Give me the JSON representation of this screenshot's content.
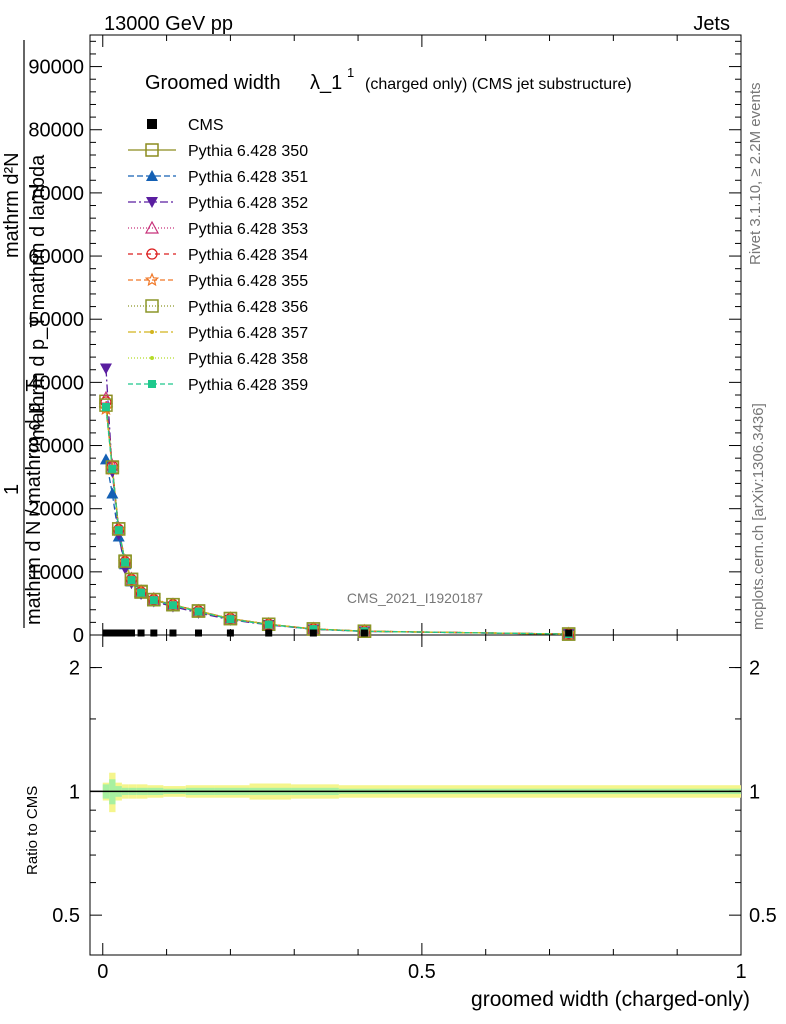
{
  "header": {
    "left": "13000 GeV pp",
    "right": "Jets"
  },
  "side": {
    "rivet": "Rivet 3.1.10, ≥ 2.2M events",
    "mcplots": "mcplots.cern.ch [arXiv:1306.3436]"
  },
  "watermark": "CMS_2021_I1920187",
  "chart_data": {
    "type": "line",
    "title": "Groomed width λ_1^1",
    "title_parts": {
      "main": "Groomed width",
      "symbol": "λ_1",
      "superscript": "1",
      "suffix": "(charged only) (CMS jet substructure)"
    },
    "xlabel": "groomed width (charged-only)",
    "ylabel_main": "1 / mathrm d N / mathrm d p_T  mathrm d^2 N / mathrm d p_T mathrm d lambda",
    "ylabel_parts": {
      "top": "mathrm d²N",
      "mid": "mathrm d p_T mathrm d lambda",
      "one": "1",
      "bottom": "mathrm d N / mathrm d p_T"
    },
    "ratio_ylabel": "Ratio to CMS",
    "xlim": [
      -0.02,
      1.0
    ],
    "ylim": [
      0,
      95000
    ],
    "ratio_ylim": [
      0.4,
      2.4
    ],
    "x_ticks": [
      "0",
      "0.5",
      "1"
    ],
    "x_tick_values": [
      0,
      0.5,
      1
    ],
    "y_ticks": [
      "0",
      "10000",
      "20000",
      "30000",
      "40000",
      "50000",
      "60000",
      "70000",
      "80000",
      "90000"
    ],
    "y_tick_values": [
      0,
      10000,
      20000,
      30000,
      40000,
      50000,
      60000,
      70000,
      80000,
      90000
    ],
    "ratio_ticks": [
      "0.5",
      "1",
      "2"
    ],
    "ratio_tick_values": [
      0.5,
      1,
      2
    ],
    "ratio_log_scale": true,
    "x": [
      0.005,
      0.015,
      0.025,
      0.035,
      0.045,
      0.06,
      0.08,
      0.11,
      0.15,
      0.2,
      0.26,
      0.33,
      0.41,
      0.73
    ],
    "data_values": [
      0,
      0,
      0,
      0,
      0,
      0,
      0,
      0,
      0,
      0,
      0,
      0,
      0,
      0
    ],
    "ratio_band_inner": [
      0.04,
      0.07,
      0.03,
      0.02,
      0.02,
      0.02,
      0.02,
      0.015,
      0.02,
      0.02,
      0.02,
      0.02,
      0.015,
      0.015
    ],
    "ratio_band_outer": [
      0.05,
      0.11,
      0.05,
      0.04,
      0.04,
      0.04,
      0.035,
      0.03,
      0.035,
      0.035,
      0.045,
      0.04,
      0.035,
      0.035
    ],
    "series": [
      {
        "name": "CMS",
        "color": "#000000",
        "marker": "square-filled",
        "dash": "none",
        "values": [
          0,
          0,
          0,
          0,
          0,
          0,
          0,
          0,
          0,
          0,
          0,
          0,
          0,
          0
        ]
      },
      {
        "name": "Pythia 6.428 350",
        "color": "#8c8c1f",
        "marker": "square-open",
        "dash": "none",
        "values": [
          37000,
          26500,
          16800,
          11600,
          8800,
          6800,
          5600,
          4800,
          3800,
          2600,
          1700,
          950,
          600,
          150
        ]
      },
      {
        "name": "Pythia 6.428 351",
        "color": "#1460b4",
        "marker": "triangle-up-filled",
        "dash": "6,3",
        "values": [
          27800,
          22400,
          15600,
          11200,
          8500,
          6700,
          5500,
          4700,
          3700,
          2500,
          1650,
          920,
          580,
          140
        ]
      },
      {
        "name": "Pythia 6.428 352",
        "color": "#5a1ea0",
        "marker": "triangle-down-filled",
        "dash": "8,3,2,3",
        "values": [
          42200,
          25800,
          15900,
          10500,
          8200,
          6500,
          5300,
          4500,
          3500,
          2400,
          1600,
          900,
          570,
          140
        ]
      },
      {
        "name": "Pythia 6.428 353",
        "color": "#c8327a",
        "marker": "triangle-up-open",
        "dash": "1,2",
        "values": [
          37500,
          26800,
          16900,
          11700,
          8900,
          6900,
          5700,
          4800,
          3800,
          2600,
          1700,
          960,
          600,
          150
        ]
      },
      {
        "name": "Pythia 6.428 354",
        "color": "#dc1e1e",
        "marker": "circle-open",
        "dash": "5,4",
        "values": [
          36900,
          26700,
          16700,
          11600,
          8800,
          6800,
          5600,
          4800,
          3800,
          2600,
          1700,
          950,
          600,
          150
        ]
      },
      {
        "name": "Pythia 6.428 355",
        "color": "#f07828",
        "marker": "star-open",
        "dash": "5,3",
        "values": [
          35800,
          26300,
          16600,
          11500,
          8700,
          6800,
          5600,
          4700,
          3700,
          2600,
          1700,
          950,
          600,
          150
        ]
      },
      {
        "name": "Pythia 6.428 356",
        "color": "#8c9628",
        "marker": "square-open",
        "dash": "1,2",
        "values": [
          36400,
          26600,
          16800,
          11700,
          8800,
          6900,
          5600,
          4800,
          3800,
          2600,
          1700,
          960,
          600,
          150
        ]
      },
      {
        "name": "Pythia 6.428 357",
        "color": "#d2b41e",
        "marker": "dot",
        "dash": "8,3,2,3",
        "values": [
          36200,
          26400,
          16700,
          11600,
          8800,
          6800,
          5600,
          4800,
          3800,
          2600,
          1700,
          950,
          600,
          150
        ]
      },
      {
        "name": "Pythia 6.428 358",
        "color": "#b4dc28",
        "marker": "dot",
        "dash": "1,2",
        "values": [
          36300,
          26500,
          16700,
          11600,
          8800,
          6800,
          5600,
          4800,
          3800,
          2600,
          1700,
          950,
          600,
          150
        ]
      },
      {
        "name": "Pythia 6.428 359",
        "color": "#1ec88c",
        "marker": "square-filled-small",
        "dash": "5,3",
        "values": [
          36100,
          26300,
          16600,
          11500,
          8700,
          6700,
          5500,
          4700,
          3700,
          2500,
          1650,
          930,
          590,
          150
        ]
      }
    ]
  }
}
